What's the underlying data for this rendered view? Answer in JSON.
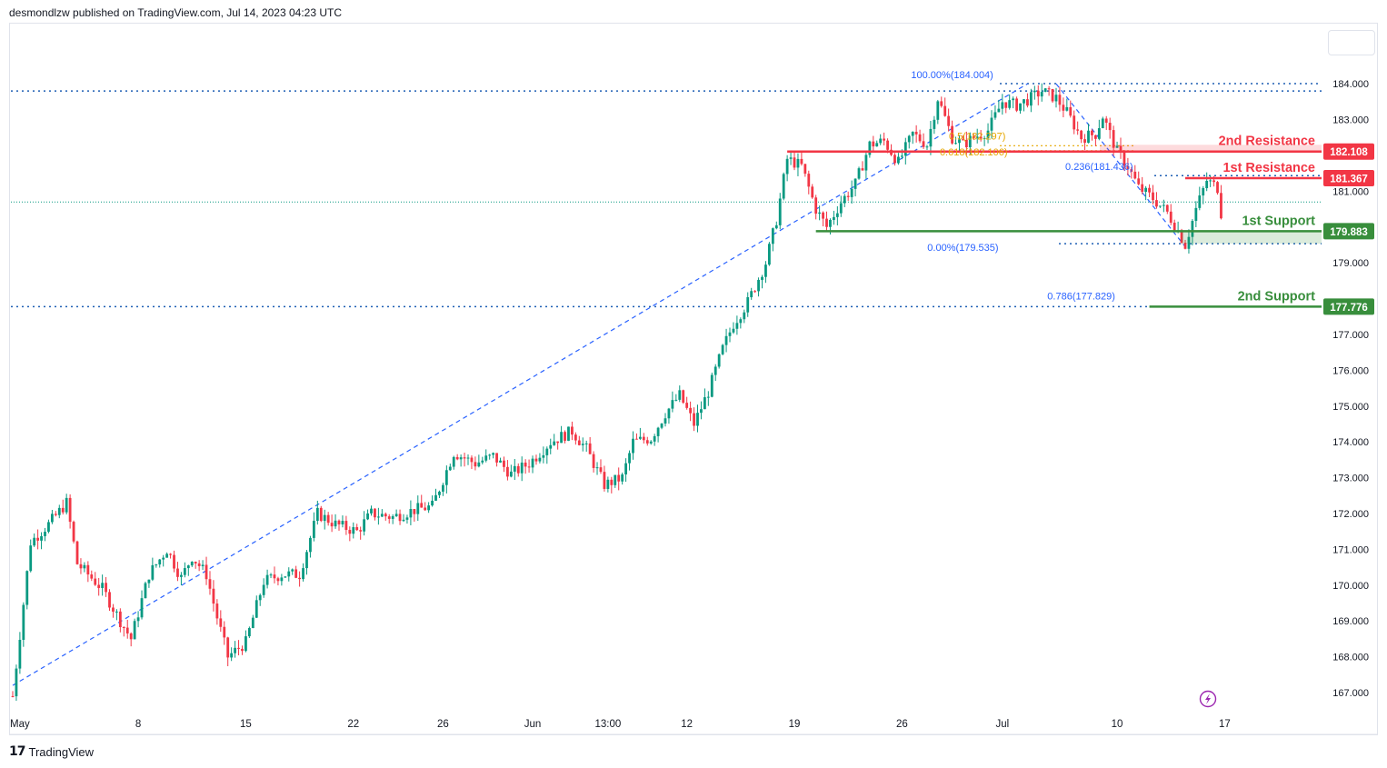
{
  "header": {
    "publisher_line": "desmondlzw published on TradingView.com, Jul 14, 2023 04:23 UTC"
  },
  "footer": {
    "brand": "TradingView",
    "logo_glyph": "17"
  },
  "icons": {
    "lightning": "lightning-icon"
  },
  "colors": {
    "up": "#089981",
    "down": "#f23645",
    "fib": "#2962ff",
    "fib_gold": "#e6a700",
    "resistance": "#f23645",
    "support": "#388e3c",
    "grid_dotted": "#1e5fb4"
  },
  "chart_data": {
    "type": "candlestick",
    "ylim": [
      166.5,
      185.1
    ],
    "y_ticks": [
      {
        "label": "167.000",
        "value": 167
      },
      {
        "label": "168.000",
        "value": 168
      },
      {
        "label": "169.000",
        "value": 169
      },
      {
        "label": "170.000",
        "value": 170
      },
      {
        "label": "171.000",
        "value": 171
      },
      {
        "label": "172.000",
        "value": 172
      },
      {
        "label": "173.000",
        "value": 173
      },
      {
        "label": "174.000",
        "value": 174
      },
      {
        "label": "175.000",
        "value": 175
      },
      {
        "label": "176.000",
        "value": 176
      },
      {
        "label": "177.000",
        "value": 177
      },
      {
        "label": "179.000",
        "value": 179
      },
      {
        "label": "181.000",
        "value": 181
      },
      {
        "label": "183.000",
        "value": 183
      },
      {
        "label": "184.000",
        "value": 184
      }
    ],
    "x_ticks": [
      {
        "label": "May",
        "index": 2
      },
      {
        "label": "8",
        "index": 35
      },
      {
        "label": "15",
        "index": 65
      },
      {
        "label": "22",
        "index": 95
      },
      {
        "label": "26",
        "index": 120
      },
      {
        "label": "Jun",
        "index": 145
      },
      {
        "label": "13:00",
        "index": 166
      },
      {
        "label": "12",
        "index": 188
      },
      {
        "label": "19",
        "index": 218
      },
      {
        "label": "26",
        "index": 248
      },
      {
        "label": "Jul",
        "index": 276
      },
      {
        "label": "10",
        "index": 308
      },
      {
        "label": "17",
        "index": 338
      }
    ],
    "anchors": [
      [
        0,
        166.9
      ],
      [
        5,
        171.2
      ],
      [
        10,
        171.7
      ],
      [
        15,
        172.3
      ],
      [
        18,
        170.6
      ],
      [
        25,
        169.9
      ],
      [
        30,
        169.0
      ],
      [
        33,
        168.5
      ],
      [
        38,
        170.3
      ],
      [
        43,
        171.0
      ],
      [
        47,
        170.2
      ],
      [
        50,
        170.8
      ],
      [
        54,
        170.3
      ],
      [
        57,
        169.1
      ],
      [
        60,
        168.0
      ],
      [
        65,
        168.4
      ],
      [
        70,
        170.1
      ],
      [
        75,
        170.3
      ],
      [
        80,
        170.3
      ],
      [
        85,
        172.0
      ],
      [
        90,
        171.7
      ],
      [
        96,
        171.5
      ],
      [
        100,
        172.0
      ],
      [
        106,
        171.9
      ],
      [
        112,
        172.1
      ],
      [
        117,
        172.2
      ],
      [
        123,
        173.7
      ],
      [
        129,
        173.4
      ],
      [
        134,
        173.6
      ],
      [
        139,
        173.1
      ],
      [
        144,
        173.4
      ],
      [
        150,
        174.0
      ],
      [
        156,
        174.3
      ],
      [
        160,
        173.8
      ],
      [
        165,
        172.8
      ],
      [
        170,
        173.0
      ],
      [
        173,
        174.0
      ],
      [
        178,
        174.1
      ],
      [
        182,
        174.8
      ],
      [
        186,
        175.3
      ],
      [
        190,
        174.5
      ],
      [
        194,
        175.4
      ],
      [
        198,
        176.6
      ],
      [
        201,
        177.3
      ],
      [
        205,
        177.9
      ],
      [
        210,
        179.0
      ],
      [
        213,
        180.2
      ],
      [
        216,
        181.9
      ],
      [
        220,
        181.7
      ],
      [
        224,
        180.5
      ],
      [
        227,
        180.0
      ],
      [
        231,
        180.7
      ],
      [
        235,
        181.2
      ],
      [
        239,
        182.3
      ],
      [
        243,
        182.4
      ],
      [
        247,
        181.8
      ],
      [
        251,
        182.6
      ],
      [
        255,
        182.3
      ],
      [
        258,
        183.6
      ],
      [
        262,
        182.5
      ],
      [
        265,
        182.3
      ],
      [
        268,
        182.5
      ],
      [
        272,
        182.7
      ],
      [
        276,
        183.5
      ],
      [
        280,
        183.4
      ],
      [
        284,
        183.6
      ],
      [
        287,
        183.8
      ],
      [
        291,
        183.6
      ],
      [
        294,
        183.2
      ],
      [
        298,
        182.5
      ],
      [
        302,
        182.6
      ],
      [
        304,
        183.1
      ],
      [
        308,
        182.1
      ],
      [
        311,
        181.7
      ],
      [
        314,
        181.1
      ],
      [
        318,
        180.8
      ],
      [
        322,
        180.4
      ],
      [
        325,
        179.9
      ],
      [
        327,
        179.5
      ],
      [
        330,
        180.5
      ],
      [
        333,
        181.3
      ],
      [
        336,
        181.1
      ],
      [
        337,
        180.4
      ]
    ],
    "levels": [
      {
        "name": "2nd Resistance",
        "value": 182.108,
        "label": "182.108",
        "color": "#f23645",
        "start_index": 216
      },
      {
        "name": "1st Resistance",
        "value": 181.367,
        "label": "181.367",
        "color": "#f23645",
        "start_index": 327
      },
      {
        "name": "1st Support",
        "value": 179.883,
        "label": "179.883",
        "color": "#388e3c",
        "start_index": 224
      },
      {
        "name": "2nd Support",
        "value": 177.776,
        "label": "177.776",
        "color": "#388e3c",
        "start_index": 317
      }
    ],
    "fib_labels": [
      {
        "text": "100.00%(184.004)",
        "value": 184.004,
        "index": 262
      },
      {
        "text": "0.5(182.297)",
        "value": 182.297,
        "index": 269
      },
      {
        "text": "0.618(182.106)",
        "value": 182.106,
        "index": 268
      },
      {
        "text": "0.236(181.436)",
        "value": 181.436,
        "index": 303
      },
      {
        "text": "0.00%(179.535)",
        "value": 179.535,
        "index": 265
      },
      {
        "text": "0.786(177.829)",
        "value": 177.829,
        "index": 298
      }
    ],
    "horizontal_dotted": [
      183.8,
      177.776
    ],
    "last_price": 180.7,
    "trendline": {
      "from": [
        0,
        167.2
      ],
      "to": [
        283,
        184.0
      ]
    }
  }
}
